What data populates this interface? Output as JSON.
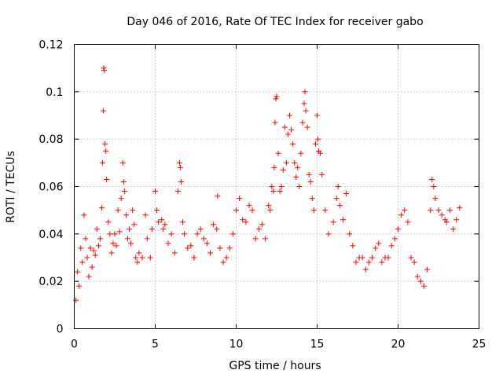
{
  "chart_data": {
    "type": "scatter",
    "title": "Day 046 of 2016, Rate Of TEC Index for receiver gabo",
    "xlabel": "GPS time / hours",
    "ylabel": "ROTI / TECUs",
    "xlim": [
      0,
      25
    ],
    "ylim": [
      0,
      0.12
    ],
    "xticks": [
      0,
      5,
      10,
      15,
      20,
      25
    ],
    "xtick_labels": [
      "0",
      "5",
      "10",
      "15",
      "20",
      "25"
    ],
    "yticks": [
      0,
      0.02,
      0.04,
      0.06,
      0.08,
      0.1,
      0.12
    ],
    "ytick_labels": [
      "0",
      "0.02",
      "0.04",
      "0.06",
      "0.08",
      "0.1",
      "0.12"
    ],
    "grid": true,
    "marker": "+",
    "color": "#ff0000",
    "series": [
      {
        "name": "ROTI",
        "points": [
          [
            0.1,
            0.012
          ],
          [
            0.2,
            0.024
          ],
          [
            0.3,
            0.018
          ],
          [
            0.4,
            0.034
          ],
          [
            0.5,
            0.028
          ],
          [
            0.6,
            0.048
          ],
          [
            0.7,
            0.038
          ],
          [
            0.8,
            0.03
          ],
          [
            0.9,
            0.022
          ],
          [
            1.0,
            0.034
          ],
          [
            1.1,
            0.026
          ],
          [
            1.2,
            0.033
          ],
          [
            1.3,
            0.031
          ],
          [
            1.4,
            0.042
          ],
          [
            1.5,
            0.035
          ],
          [
            1.6,
            0.038
          ],
          [
            1.7,
            0.051
          ],
          [
            1.75,
            0.07
          ],
          [
            1.8,
            0.092
          ],
          [
            1.82,
            0.11
          ],
          [
            1.85,
            0.109
          ],
          [
            1.9,
            0.078
          ],
          [
            1.95,
            0.075
          ],
          [
            2.0,
            0.063
          ],
          [
            2.1,
            0.045
          ],
          [
            2.2,
            0.04
          ],
          [
            2.3,
            0.032
          ],
          [
            2.4,
            0.036
          ],
          [
            2.5,
            0.04
          ],
          [
            2.6,
            0.035
          ],
          [
            2.7,
            0.05
          ],
          [
            2.8,
            0.041
          ],
          [
            2.9,
            0.055
          ],
          [
            3.0,
            0.07
          ],
          [
            3.05,
            0.062
          ],
          [
            3.1,
            0.058
          ],
          [
            3.2,
            0.048
          ],
          [
            3.3,
            0.038
          ],
          [
            3.4,
            0.042
          ],
          [
            3.5,
            0.036
          ],
          [
            3.6,
            0.05
          ],
          [
            3.7,
            0.044
          ],
          [
            3.8,
            0.03
          ],
          [
            3.9,
            0.028
          ],
          [
            4.0,
            0.032
          ],
          [
            4.2,
            0.03
          ],
          [
            4.4,
            0.048
          ],
          [
            4.5,
            0.038
          ],
          [
            4.7,
            0.03
          ],
          [
            4.8,
            0.042
          ],
          [
            5.0,
            0.058
          ],
          [
            5.1,
            0.05
          ],
          [
            5.2,
            0.045
          ],
          [
            5.4,
            0.046
          ],
          [
            5.5,
            0.042
          ],
          [
            5.6,
            0.044
          ],
          [
            5.8,
            0.036
          ],
          [
            6.0,
            0.04
          ],
          [
            6.2,
            0.032
          ],
          [
            6.4,
            0.058
          ],
          [
            6.5,
            0.07
          ],
          [
            6.55,
            0.068
          ],
          [
            6.6,
            0.062
          ],
          [
            6.7,
            0.045
          ],
          [
            6.8,
            0.04
          ],
          [
            7.0,
            0.034
          ],
          [
            7.2,
            0.035
          ],
          [
            7.4,
            0.03
          ],
          [
            7.6,
            0.04
          ],
          [
            7.8,
            0.042
          ],
          [
            8.0,
            0.038
          ],
          [
            8.2,
            0.036
          ],
          [
            8.4,
            0.032
          ],
          [
            8.6,
            0.044
          ],
          [
            8.8,
            0.042
          ],
          [
            8.85,
            0.056
          ],
          [
            9.0,
            0.034
          ],
          [
            9.2,
            0.028
          ],
          [
            9.4,
            0.03
          ],
          [
            9.6,
            0.034
          ],
          [
            9.8,
            0.04
          ],
          [
            10.0,
            0.05
          ],
          [
            10.2,
            0.055
          ],
          [
            10.4,
            0.046
          ],
          [
            10.6,
            0.045
          ],
          [
            10.8,
            0.052
          ],
          [
            11.0,
            0.05
          ],
          [
            11.2,
            0.038
          ],
          [
            11.4,
            0.042
          ],
          [
            11.6,
            0.044
          ],
          [
            11.8,
            0.038
          ],
          [
            12.0,
            0.052
          ],
          [
            12.1,
            0.05
          ],
          [
            12.2,
            0.06
          ],
          [
            12.3,
            0.058
          ],
          [
            12.35,
            0.068
          ],
          [
            12.4,
            0.087
          ],
          [
            12.45,
            0.097
          ],
          [
            12.5,
            0.098
          ],
          [
            12.6,
            0.074
          ],
          [
            12.7,
            0.058
          ],
          [
            12.8,
            0.06
          ],
          [
            12.9,
            0.067
          ],
          [
            13.0,
            0.085
          ],
          [
            13.1,
            0.07
          ],
          [
            13.2,
            0.082
          ],
          [
            13.3,
            0.09
          ],
          [
            13.4,
            0.084
          ],
          [
            13.5,
            0.078
          ],
          [
            13.6,
            0.07
          ],
          [
            13.7,
            0.064
          ],
          [
            13.8,
            0.068
          ],
          [
            13.9,
            0.06
          ],
          [
            14.0,
            0.074
          ],
          [
            14.1,
            0.087
          ],
          [
            14.2,
            0.095
          ],
          [
            14.25,
            0.1
          ],
          [
            14.3,
            0.092
          ],
          [
            14.4,
            0.085
          ],
          [
            14.5,
            0.065
          ],
          [
            14.6,
            0.062
          ],
          [
            14.7,
            0.055
          ],
          [
            14.8,
            0.05
          ],
          [
            14.9,
            0.078
          ],
          [
            15.0,
            0.09
          ],
          [
            15.05,
            0.08
          ],
          [
            15.1,
            0.075
          ],
          [
            15.2,
            0.074
          ],
          [
            15.3,
            0.065
          ],
          [
            15.5,
            0.05
          ],
          [
            15.7,
            0.04
          ],
          [
            16.0,
            0.045
          ],
          [
            16.2,
            0.055
          ],
          [
            16.3,
            0.06
          ],
          [
            16.4,
            0.052
          ],
          [
            16.6,
            0.046
          ],
          [
            16.8,
            0.057
          ],
          [
            17.0,
            0.04
          ],
          [
            17.2,
            0.035
          ],
          [
            17.4,
            0.028
          ],
          [
            17.6,
            0.03
          ],
          [
            17.8,
            0.03
          ],
          [
            18.0,
            0.025
          ],
          [
            18.2,
            0.028
          ],
          [
            18.4,
            0.03
          ],
          [
            18.6,
            0.034
          ],
          [
            18.8,
            0.036
          ],
          [
            19.0,
            0.028
          ],
          [
            19.2,
            0.03
          ],
          [
            19.4,
            0.03
          ],
          [
            19.6,
            0.035
          ],
          [
            19.8,
            0.038
          ],
          [
            20.0,
            0.042
          ],
          [
            20.2,
            0.048
          ],
          [
            20.4,
            0.05
          ],
          [
            20.6,
            0.045
          ],
          [
            20.8,
            0.03
          ],
          [
            21.0,
            0.028
          ],
          [
            21.2,
            0.022
          ],
          [
            21.4,
            0.02
          ],
          [
            21.6,
            0.018
          ],
          [
            21.8,
            0.025
          ],
          [
            22.0,
            0.05
          ],
          [
            22.1,
            0.063
          ],
          [
            22.2,
            0.06
          ],
          [
            22.3,
            0.055
          ],
          [
            22.5,
            0.05
          ],
          [
            22.7,
            0.048
          ],
          [
            22.9,
            0.046
          ],
          [
            23.0,
            0.045
          ],
          [
            23.2,
            0.05
          ],
          [
            23.4,
            0.042
          ],
          [
            23.6,
            0.046
          ],
          [
            23.8,
            0.051
          ]
        ]
      }
    ]
  }
}
